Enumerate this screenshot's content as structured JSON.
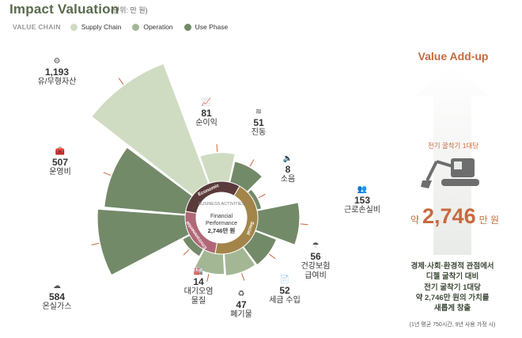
{
  "header": {
    "title": "Impact Valuation",
    "unit": "(단위: 만 원)"
  },
  "legend": {
    "label": "VALUE CHAIN",
    "items": [
      {
        "label": "Supply Chain",
        "color": "#cfdcc2"
      },
      {
        "label": "Operation",
        "color": "#a3b794"
      },
      {
        "label": "Use Phase",
        "color": "#738a68"
      }
    ]
  },
  "center": {
    "title": "BUSINESS ACTIVITIES",
    "line1": "Financial",
    "line2": "Performance",
    "line3": "2,746만 원",
    "ring_labels": {
      "economic": "Economic",
      "social": "Social",
      "environmental": "Environmental"
    }
  },
  "chart_data": {
    "type": "polar-area",
    "unit": "만 원",
    "segments": [
      {
        "name": "순이익",
        "value": 81,
        "group": "Economic",
        "stage": "Supply Chain",
        "icon": "chart-icon"
      },
      {
        "name": "진동",
        "value": 51,
        "group": "Social",
        "stage": "Use Phase",
        "icon": "vibration-icon"
      },
      {
        "name": "소음",
        "value": 8,
        "group": "Social",
        "stage": "Use Phase",
        "icon": "speaker-icon"
      },
      {
        "name": "근로손실비",
        "value": 153,
        "group": "Social",
        "stage": "Use Phase",
        "icon": "people-icon"
      },
      {
        "name": "건강보험 급여비",
        "value": 56,
        "group": "Social",
        "stage": "Use Phase",
        "icon": "umbrella-icon"
      },
      {
        "name": "세금 수입",
        "value": 52,
        "group": "Social",
        "stage": "Operation",
        "icon": "document-icon"
      },
      {
        "name": "폐기물",
        "value": 47,
        "group": "Environmental",
        "stage": "Operation",
        "icon": "waste-icon"
      },
      {
        "name": "대기오염 물질",
        "value": 14,
        "group": "Environmental",
        "stage": "Use Phase",
        "icon": "factory-icon"
      },
      {
        "name": "온실가스",
        "value": 584,
        "group": "Environmental",
        "stage": "Use Phase",
        "icon": "cloud-icon"
      },
      {
        "name": "운영비",
        "value": 507,
        "group": "Economic",
        "stage": "Use Phase",
        "icon": "tools-icon"
      },
      {
        "name": "유/무형자산",
        "value": 1193,
        "group": "Economic",
        "stage": "Supply Chain",
        "icon": "assets-icon"
      }
    ]
  },
  "labels": [
    {
      "value": "1,193",
      "name": "유/무형자산",
      "icon": "⚙"
    },
    {
      "value": "81",
      "name": "순이익",
      "icon": "📈"
    },
    {
      "value": "51",
      "name": "진동",
      "icon": "≋"
    },
    {
      "value": "8",
      "name": "소음",
      "icon": "🔈"
    },
    {
      "value": "153",
      "name": "근로손실비",
      "icon": "👥"
    },
    {
      "value": "507",
      "name": "운영비",
      "icon": "🧰"
    },
    {
      "value": "56",
      "name": "건강보험",
      "name2": "급여비",
      "icon": "☂"
    },
    {
      "value": "584",
      "name": "온실가스",
      "icon": "☁"
    },
    {
      "value": "14",
      "name": "대기오염",
      "name2": "물질",
      "icon": "🏭"
    },
    {
      "value": "47",
      "name": "폐기물",
      "icon": "♻"
    },
    {
      "value": "52",
      "name": "세금 수입",
      "icon": "📄"
    }
  ],
  "value_addup": {
    "title": "Value Add-up",
    "caption": "전기 굴착기 1대당",
    "prefix": "약",
    "amount": "2,746",
    "suffix": "만 원",
    "desc1": "경제·사회·환경적 관점에서",
    "desc2": "디젤 굴착기 대비",
    "desc3": "전기 굴착기 1대당",
    "desc4": "약 2,746만 원의 가치를",
    "desc5": "새롭게 창출",
    "note": "(1년 평균 750시간, 9년 사용 가정 시)"
  }
}
